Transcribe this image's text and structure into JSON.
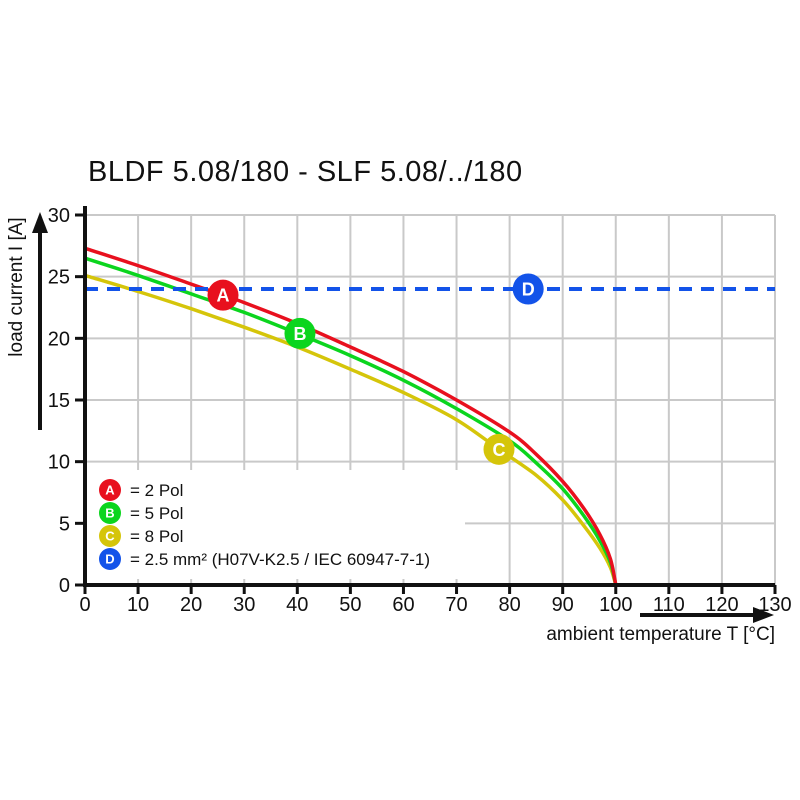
{
  "title": "BLDF 5.08/180 - SLF 5.08/../180",
  "axes": {
    "x": {
      "label": "ambient temperature T [°C]",
      "min": 0,
      "max": 130,
      "ticks": [
        0,
        10,
        20,
        30,
        40,
        50,
        60,
        70,
        80,
        90,
        100,
        110,
        120,
        130
      ]
    },
    "y": {
      "label": "load current I [A]",
      "min": 0,
      "max": 30,
      "ticks": [
        0,
        5,
        10,
        15,
        20,
        25,
        30
      ]
    }
  },
  "colors": {
    "grid": "#c9c9c9",
    "axis": "#111111",
    "red": "#e8101e",
    "green": "#0bd51e",
    "yellow": "#d5c50a",
    "blue": "#1353e9"
  },
  "chart_data": {
    "type": "line",
    "title": "BLDF 5.08/180 - SLF 5.08/../180",
    "xlabel": "ambient temperature T [°C]",
    "ylabel": "load current I [A]",
    "xlim": [
      0,
      130
    ],
    "ylim": [
      0,
      30
    ],
    "grid": true,
    "legend_position": "inside bottom-left",
    "series": [
      {
        "id": "A",
        "letter": "A",
        "name": "2 Pol",
        "legend_text": "= 2 Pol",
        "color": "#e8101e",
        "style": "solid",
        "marker": {
          "letter": "A",
          "x": 26,
          "y": 23.5
        },
        "points": [
          [
            0,
            27.3
          ],
          [
            10,
            25.9
          ],
          [
            20,
            24.4
          ],
          [
            26,
            23.5
          ],
          [
            30,
            22.9
          ],
          [
            40,
            21.2
          ],
          [
            50,
            19.3
          ],
          [
            60,
            17.3
          ],
          [
            70,
            15.0
          ],
          [
            80,
            12.4
          ],
          [
            85,
            10.6
          ],
          [
            90,
            8.4
          ],
          [
            94,
            6.2
          ],
          [
            97,
            4.1
          ],
          [
            99,
            2.1
          ],
          [
            100,
            0
          ]
        ]
      },
      {
        "id": "B",
        "letter": "B",
        "name": "5 Pol",
        "legend_text": "= 5 Pol",
        "color": "#0bd51e",
        "style": "solid",
        "marker": {
          "letter": "B",
          "x": 40.5,
          "y": 20.4
        },
        "points": [
          [
            0,
            26.5
          ],
          [
            10,
            25.1
          ],
          [
            20,
            23.6
          ],
          [
            30,
            22.1
          ],
          [
            40,
            20.4
          ],
          [
            50,
            18.6
          ],
          [
            60,
            16.6
          ],
          [
            70,
            14.3
          ],
          [
            80,
            11.7
          ],
          [
            85,
            9.9
          ],
          [
            90,
            7.8
          ],
          [
            94,
            5.6
          ],
          [
            97,
            3.6
          ],
          [
            99,
            1.8
          ],
          [
            100,
            0
          ]
        ]
      },
      {
        "id": "C",
        "letter": "C",
        "name": "8 Pol",
        "legend_text": "= 8 Pol",
        "color": "#d5c50a",
        "style": "solid",
        "marker": {
          "letter": "C",
          "x": 78,
          "y": 11.0
        },
        "points": [
          [
            0,
            25.1
          ],
          [
            10,
            23.8
          ],
          [
            20,
            22.4
          ],
          [
            30,
            20.9
          ],
          [
            40,
            19.3
          ],
          [
            50,
            17.5
          ],
          [
            60,
            15.6
          ],
          [
            70,
            13.4
          ],
          [
            78,
            11.0
          ],
          [
            85,
            8.9
          ],
          [
            90,
            6.9
          ],
          [
            94,
            4.8
          ],
          [
            97,
            3.0
          ],
          [
            99,
            1.4
          ],
          [
            100,
            0
          ]
        ]
      },
      {
        "id": "D",
        "letter": "D",
        "name": "2.5 mm² (H07V-K2.5 / IEC 60947-7-1)",
        "legend_text": "= 2.5 mm² (H07V-K2.5 / IEC 60947-7-1)",
        "color": "#1353e9",
        "style": "dashed",
        "marker": {
          "letter": "D",
          "x": 83.5,
          "y": 24
        },
        "points": [
          [
            0,
            24
          ],
          [
            130,
            24
          ]
        ]
      }
    ]
  }
}
